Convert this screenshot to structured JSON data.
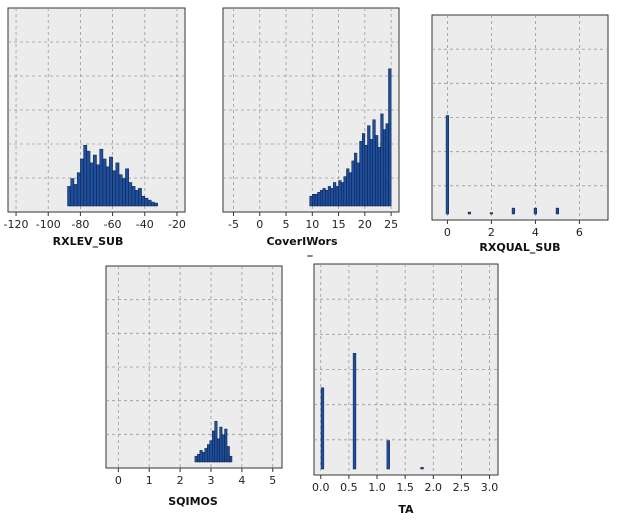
{
  "colors": {
    "panel_bg": "#ececec",
    "bar_fill": "#1f4e9c",
    "bar_stroke": "#0b1f44",
    "grid": "#9a9a9a",
    "frame": "#333333"
  },
  "chart_data": [
    {
      "type": "bar",
      "xlabel": "RXLEV_SUB",
      "xlim": [
        -125,
        -15
      ],
      "xticks": [
        -120,
        -100,
        -80,
        -60,
        -40,
        -20
      ],
      "grid": true,
      "ylim": [
        0,
        100
      ],
      "bin_width": 2,
      "bins": [
        {
          "x": -87,
          "y": 10
        },
        {
          "x": -85,
          "y": 14
        },
        {
          "x": -83,
          "y": 11
        },
        {
          "x": -81,
          "y": 17
        },
        {
          "x": -79,
          "y": 24
        },
        {
          "x": -77,
          "y": 31
        },
        {
          "x": -75,
          "y": 28
        },
        {
          "x": -73,
          "y": 22
        },
        {
          "x": -71,
          "y": 26
        },
        {
          "x": -69,
          "y": 21
        },
        {
          "x": -67,
          "y": 29
        },
        {
          "x": -65,
          "y": 24
        },
        {
          "x": -63,
          "y": 20
        },
        {
          "x": -61,
          "y": 25
        },
        {
          "x": -59,
          "y": 18
        },
        {
          "x": -57,
          "y": 22
        },
        {
          "x": -55,
          "y": 16
        },
        {
          "x": -53,
          "y": 14
        },
        {
          "x": -51,
          "y": 19
        },
        {
          "x": -49,
          "y": 12
        },
        {
          "x": -47,
          "y": 10
        },
        {
          "x": -45,
          "y": 8
        },
        {
          "x": -43,
          "y": 9
        },
        {
          "x": -41,
          "y": 5
        },
        {
          "x": -39,
          "y": 4
        },
        {
          "x": -37,
          "y": 3
        },
        {
          "x": -35,
          "y": 2
        },
        {
          "x": -33,
          "y": 1.5
        }
      ]
    },
    {
      "type": "bar",
      "xlabel": "CoverIWors",
      "sublabel": "_",
      "xlim": [
        -7,
        26.5
      ],
      "xticks": [
        -5,
        0,
        5,
        10,
        15,
        20,
        25
      ],
      "grid": true,
      "ylim": [
        0,
        100
      ],
      "bin_width": 0.5,
      "bins": [
        {
          "x": 9.75,
          "y": 5
        },
        {
          "x": 10.25,
          "y": 6
        },
        {
          "x": 10.75,
          "y": 6
        },
        {
          "x": 11.25,
          "y": 7
        },
        {
          "x": 11.75,
          "y": 8
        },
        {
          "x": 12.25,
          "y": 9
        },
        {
          "x": 12.75,
          "y": 8
        },
        {
          "x": 13.25,
          "y": 10
        },
        {
          "x": 13.75,
          "y": 9
        },
        {
          "x": 14.25,
          "y": 12
        },
        {
          "x": 14.75,
          "y": 10
        },
        {
          "x": 15.25,
          "y": 13
        },
        {
          "x": 15.75,
          "y": 12
        },
        {
          "x": 16.25,
          "y": 15
        },
        {
          "x": 16.75,
          "y": 19
        },
        {
          "x": 17.25,
          "y": 17
        },
        {
          "x": 17.75,
          "y": 23
        },
        {
          "x": 18.25,
          "y": 27
        },
        {
          "x": 18.75,
          "y": 22
        },
        {
          "x": 19.25,
          "y": 33
        },
        {
          "x": 19.75,
          "y": 37
        },
        {
          "x": 20.25,
          "y": 31
        },
        {
          "x": 20.75,
          "y": 41
        },
        {
          "x": 21.25,
          "y": 34
        },
        {
          "x": 21.75,
          "y": 44
        },
        {
          "x": 22.25,
          "y": 36
        },
        {
          "x": 22.75,
          "y": 30
        },
        {
          "x": 23.25,
          "y": 47
        },
        {
          "x": 23.75,
          "y": 39
        },
        {
          "x": 24.25,
          "y": 42
        },
        {
          "x": 24.75,
          "y": 70
        }
      ]
    },
    {
      "type": "bar",
      "xlabel": "RXQUAL_SUB",
      "xlim": [
        -0.7,
        7.3
      ],
      "xticks": [
        0,
        2,
        4,
        6
      ],
      "grid": true,
      "ylim": [
        0,
        100
      ],
      "bin_width": 0.12,
      "bins": [
        {
          "x": 0,
          "y": 50
        },
        {
          "x": 1,
          "y": 1
        },
        {
          "x": 2,
          "y": 0.7
        },
        {
          "x": 3,
          "y": 3
        },
        {
          "x": 4,
          "y": 3
        },
        {
          "x": 5,
          "y": 3
        }
      ]
    },
    {
      "type": "bar",
      "xlabel": "SQIMOS",
      "xlim": [
        -0.4,
        5.3
      ],
      "xticks": [
        0,
        1,
        2,
        3,
        4,
        5
      ],
      "grid": true,
      "ylim": [
        0,
        100
      ],
      "bin_width": 0.08,
      "bins": [
        {
          "x": 2.52,
          "y": 3
        },
        {
          "x": 2.6,
          "y": 4
        },
        {
          "x": 2.68,
          "y": 6
        },
        {
          "x": 2.76,
          "y": 5
        },
        {
          "x": 2.84,
          "y": 7
        },
        {
          "x": 2.92,
          "y": 9
        },
        {
          "x": 3.0,
          "y": 11
        },
        {
          "x": 3.08,
          "y": 16
        },
        {
          "x": 3.16,
          "y": 21
        },
        {
          "x": 3.24,
          "y": 12
        },
        {
          "x": 3.32,
          "y": 18
        },
        {
          "x": 3.4,
          "y": 14
        },
        {
          "x": 3.48,
          "y": 17
        },
        {
          "x": 3.56,
          "y": 8
        },
        {
          "x": 3.64,
          "y": 3
        }
      ]
    },
    {
      "type": "bar",
      "xlabel": "TA",
      "xlim": [
        -0.12,
        3.15
      ],
      "xticks": [
        "0.0",
        "0.5",
        "1.0",
        "1.5",
        "2.0",
        "2.5",
        "3.0"
      ],
      "grid": true,
      "ylim": [
        0,
        100
      ],
      "bin_width": 0.05,
      "bins": [
        {
          "x": 0.03,
          "y": 40
        },
        {
          "x": 0.6,
          "y": 57
        },
        {
          "x": 1.2,
          "y": 14
        },
        {
          "x": 1.8,
          "y": 0.8
        }
      ]
    }
  ]
}
